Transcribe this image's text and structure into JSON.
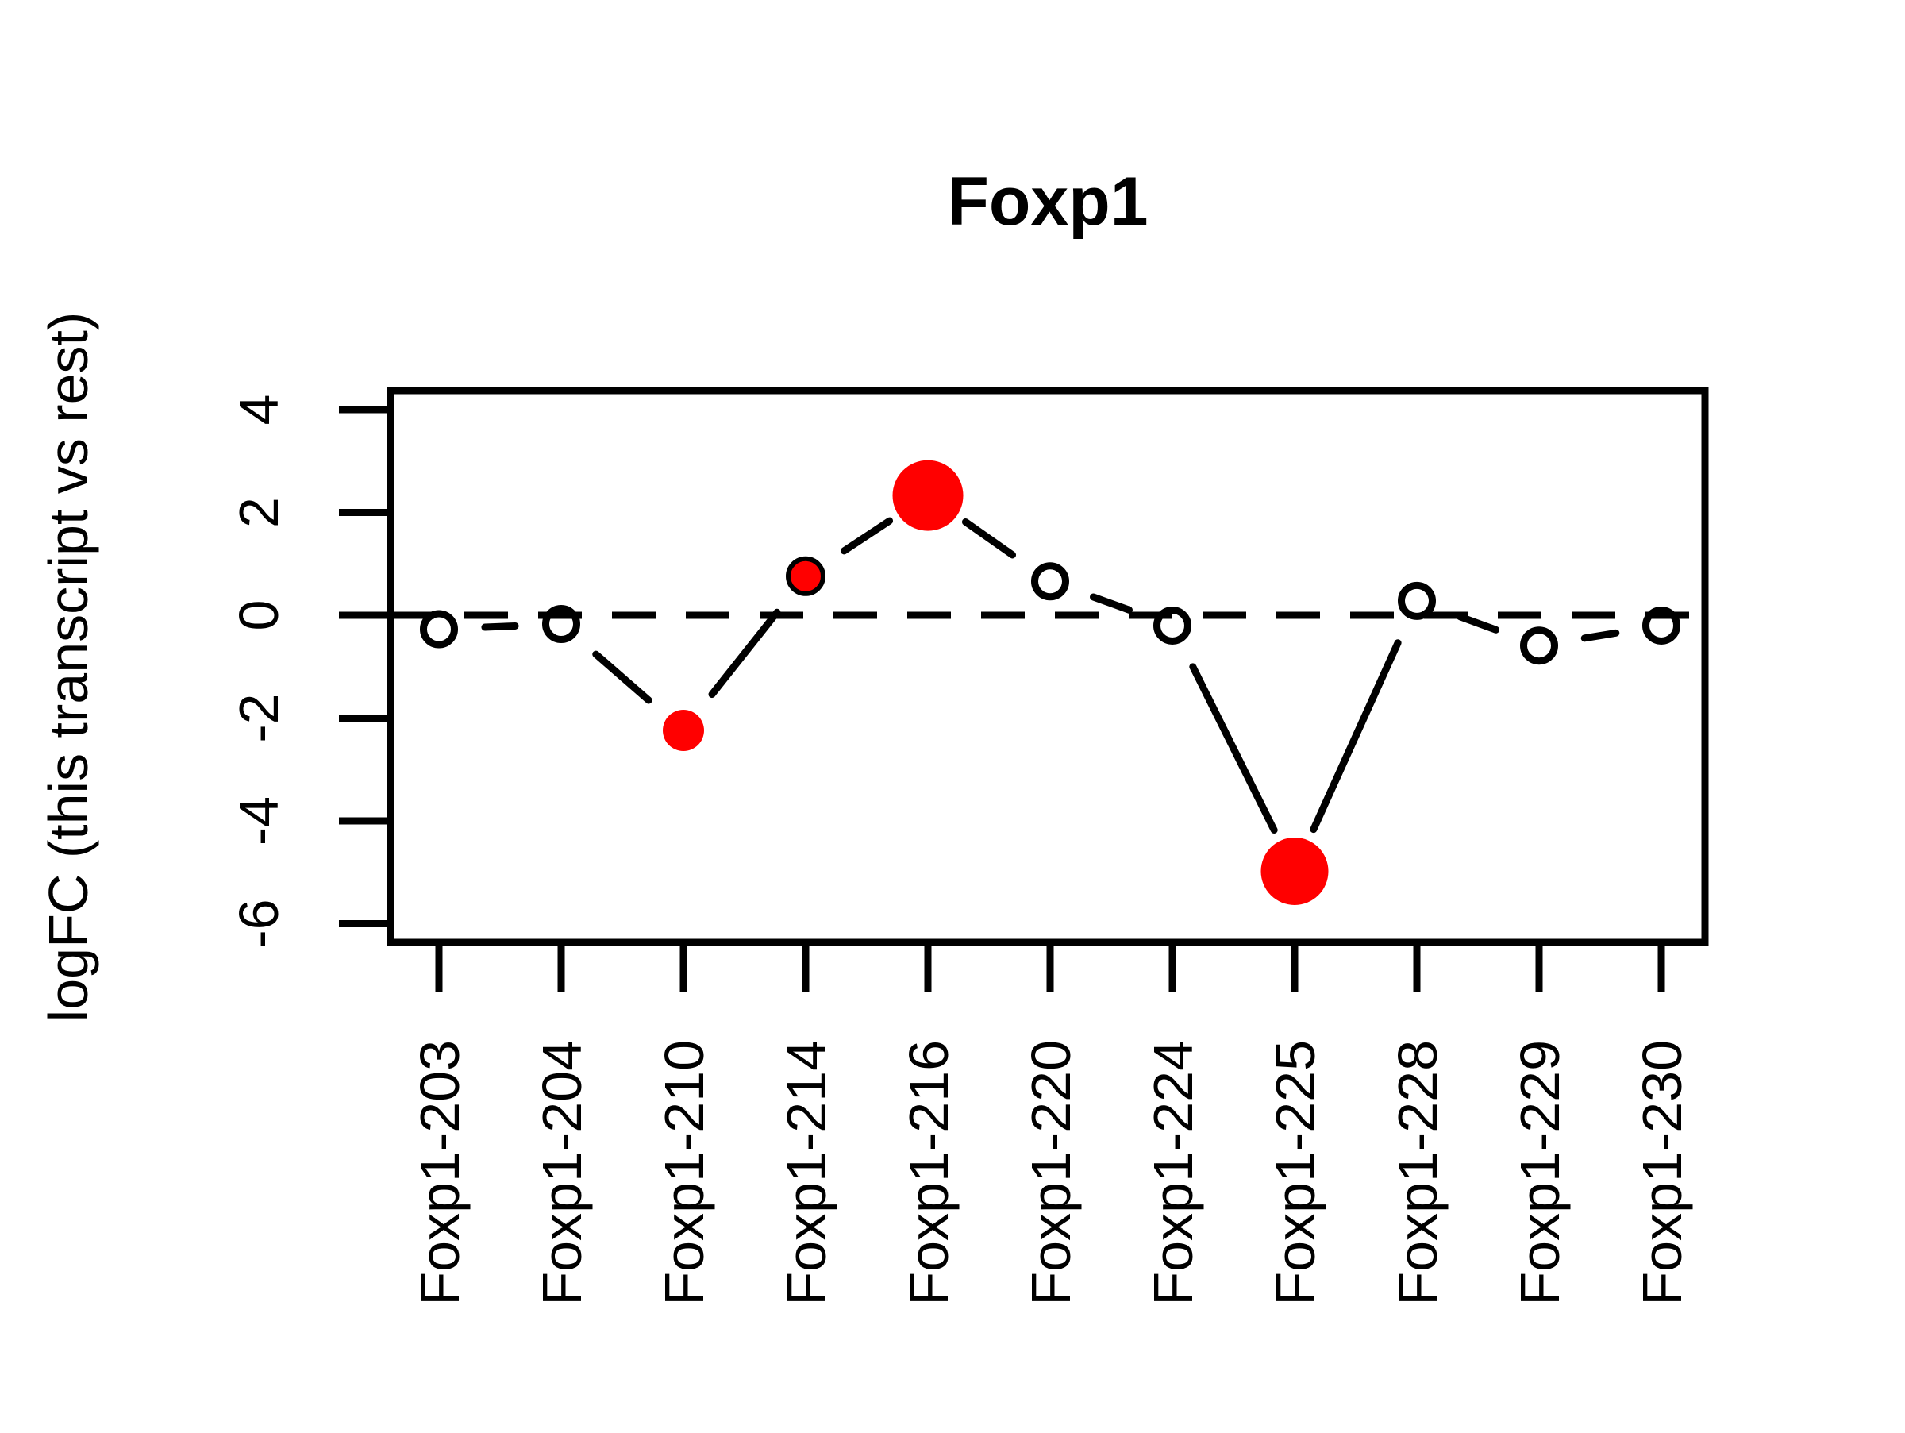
{
  "title": "Foxp1",
  "y_axis_label": "logFC (this transcript vs rest)",
  "colors": {
    "significant_point": "#FF0000",
    "line_and_axis": "#000000",
    "background": "#FFFFFF"
  },
  "chart_data": {
    "type": "line",
    "title": "Foxp1",
    "xlabel": "",
    "ylabel": "logFC (this transcript vs rest)",
    "categories": [
      "Foxp1-203",
      "Foxp1-204",
      "Foxp1-210",
      "Foxp1-214",
      "Foxp1-216",
      "Foxp1-220",
      "Foxp1-224",
      "Foxp1-225",
      "Foxp1-228",
      "Foxp1-229",
      "Foxp1-230"
    ],
    "values": [
      -0.27,
      -0.17,
      -2.24,
      0.76,
      2.33,
      0.66,
      -0.2,
      -4.98,
      0.28,
      -0.59,
      -0.2
    ],
    "points": [
      {
        "name": "Foxp1-203",
        "logFC": -0.27,
        "significant": false,
        "marker": "open",
        "marker_px": 48
      },
      {
        "name": "Foxp1-204",
        "logFC": -0.17,
        "significant": false,
        "marker": "open",
        "marker_px": 48
      },
      {
        "name": "Foxp1-210",
        "logFC": -2.24,
        "significant": true,
        "marker": "filled",
        "marker_px": 52
      },
      {
        "name": "Foxp1-214",
        "logFC": 0.76,
        "significant": true,
        "marker": "filled-outlined",
        "marker_px": 50
      },
      {
        "name": "Foxp1-216",
        "logFC": 2.33,
        "significant": true,
        "marker": "filled",
        "marker_px": 89
      },
      {
        "name": "Foxp1-220",
        "logFC": 0.66,
        "significant": false,
        "marker": "open",
        "marker_px": 48
      },
      {
        "name": "Foxp1-224",
        "logFC": -0.2,
        "significant": false,
        "marker": "open",
        "marker_px": 48
      },
      {
        "name": "Foxp1-225",
        "logFC": -4.98,
        "significant": true,
        "marker": "filled",
        "marker_px": 85
      },
      {
        "name": "Foxp1-228",
        "logFC": 0.28,
        "significant": false,
        "marker": "open",
        "marker_px": 48
      },
      {
        "name": "Foxp1-229",
        "logFC": -0.59,
        "significant": false,
        "marker": "open",
        "marker_px": 48
      },
      {
        "name": "Foxp1-230",
        "logFC": -0.2,
        "significant": false,
        "marker": "open",
        "marker_px": 48
      }
    ],
    "y_ticks": [
      4,
      2,
      0,
      -2,
      -4,
      -6
    ],
    "ylim": [
      -6.4,
      4.4
    ],
    "reference_line_y": 0,
    "reference_line_style": "dashed",
    "x_tick_label_rotation": 90,
    "y_tick_label_rotation": 90,
    "grid": false,
    "legend": "none"
  }
}
